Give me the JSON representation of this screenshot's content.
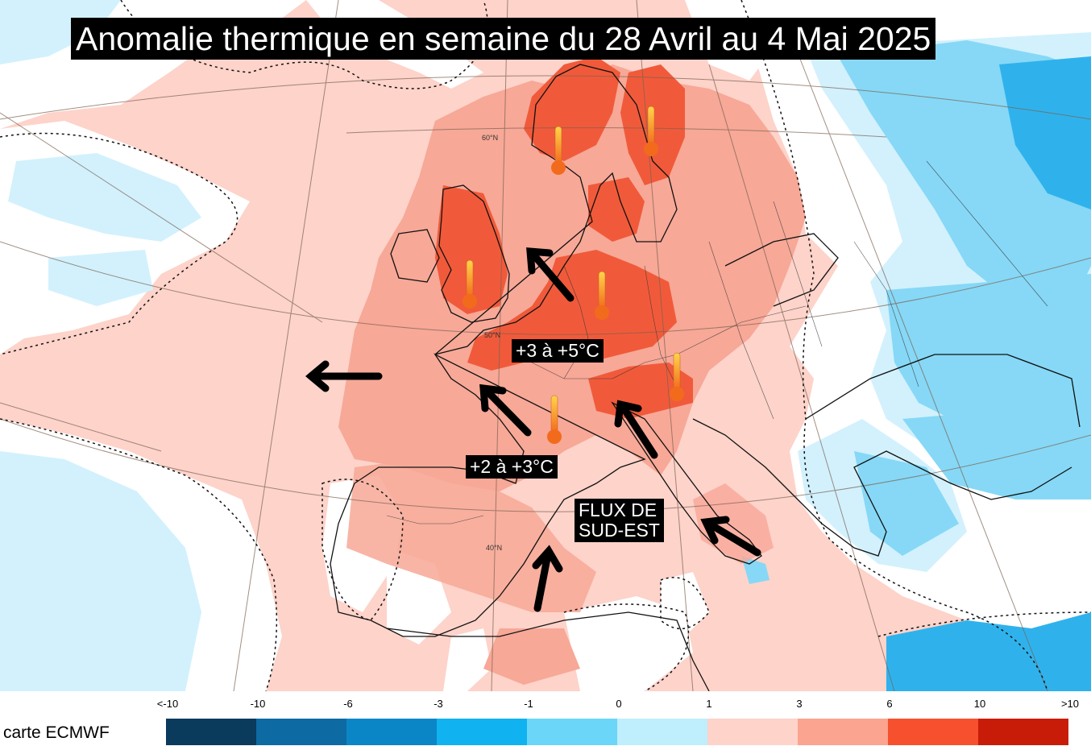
{
  "title": "Anomalie thermique en semaine du 28 Avril au 4 Mai 2025",
  "labels": {
    "north": "+3 à +5°C",
    "south": "+2 à +3°C",
    "flux": "FLUX DE\nSUD-EST"
  },
  "latitudes": {
    "lat60": "60°N",
    "lat50": "50°N",
    "lat40": "40°N"
  },
  "legend": {
    "ticks": [
      "<-10",
      "-10",
      "-6",
      "-3",
      "-1",
      "0",
      "1",
      "3",
      "6",
      "10",
      ">10"
    ],
    "colors": [
      "#0a3a5c",
      "#0e6aa3",
      "#0a86c6",
      "#10b2ef",
      "#6bd6f8",
      "#bfeefc",
      "#fdd3ca",
      "#fba48f",
      "#f7502e",
      "#c81c08",
      "#6e0000"
    ]
  },
  "source": "carte ECMWF",
  "colors": {
    "warm_light": "#fdd3ca",
    "warm_mid": "#f7a897",
    "warm_strong": "#f05a3a",
    "cold_light": "#d2f1fd",
    "cold_mid": "#86d8f6",
    "cold_strong": "#2fb2ec"
  },
  "icons": [
    "thermometer-icon",
    "arrow-icon"
  ]
}
